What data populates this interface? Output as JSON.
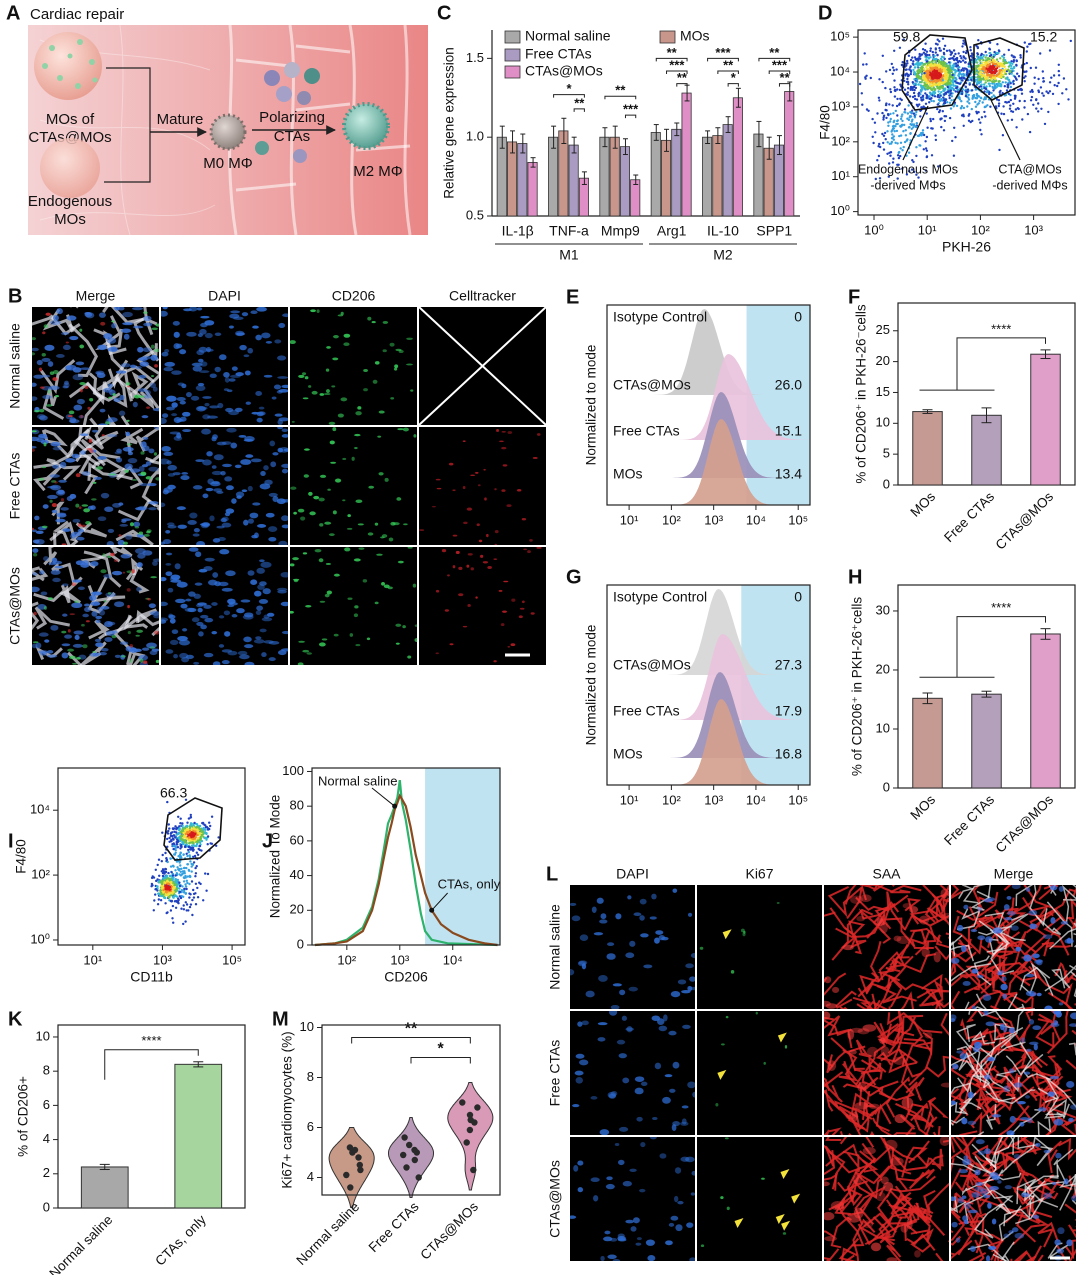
{
  "diagram": {
    "panel": "A",
    "title": "Cardiac repair",
    "mos_label": [
      "MOs of",
      "CTAs@MOs"
    ],
    "endo_label": [
      "Endogenous",
      "MOs"
    ],
    "mature": "Mature",
    "m0": "M0 MΦ",
    "polarizing": [
      "Polarizing",
      "CTAs"
    ],
    "m2": "M2 MΦ"
  },
  "micrographs_B": {
    "panel": "B",
    "columns": [
      "Merge",
      "DAPI",
      "CD206",
      "Celltracker"
    ],
    "column_colors": [
      "#111111",
      "#3a86d0",
      "#2fb36a",
      "#e0202a"
    ],
    "rows": [
      "Normal saline",
      "Free CTAs",
      "CTAs@MOs"
    ]
  },
  "micrographs_L": {
    "panel": "L",
    "columns": [
      "DAPI",
      "Ki67",
      "SAA",
      "Merge"
    ],
    "column_colors": [
      "#4aa9dc",
      "#3dbb6a",
      "#e0302a",
      "#111111"
    ],
    "rows": [
      "Normal saline",
      "Free CTAs",
      "CTAs@MOs"
    ]
  },
  "chart_data": [
    {
      "type": "bar",
      "panel": "C",
      "ylabel": "Relative gene expression",
      "categories": [
        "IL-1β",
        "TNF-a",
        "Mmp9",
        "Arg1",
        "IL-10",
        "SPP1"
      ],
      "groups": [
        {
          "label": "M1",
          "from": 0,
          "to": 2
        },
        {
          "label": "M2",
          "from": 3,
          "to": 5
        }
      ],
      "series": [
        {
          "name": "Normal saline",
          "color": "#a9a9a9",
          "values": [
            1.0,
            1.0,
            1.0,
            1.03,
            1.0,
            1.02
          ],
          "errors": [
            0.07,
            0.07,
            0.06,
            0.05,
            0.04,
            0.08
          ]
        },
        {
          "name": "MOs",
          "color": "#c9968c",
          "values": [
            0.97,
            1.04,
            1.0,
            0.98,
            1.01,
            0.93
          ],
          "errors": [
            0.07,
            0.08,
            0.07,
            0.07,
            0.05,
            0.07
          ]
        },
        {
          "name": "Free CTAs",
          "color": "#a99bc2",
          "values": [
            0.96,
            0.95,
            0.94,
            1.05,
            1.08,
            0.95
          ],
          "errors": [
            0.06,
            0.05,
            0.05,
            0.04,
            0.05,
            0.06
          ]
        },
        {
          "name": "CTAs@MOs",
          "color": "#df8fc6",
          "values": [
            0.84,
            0.74,
            0.73,
            1.28,
            1.25,
            1.29
          ],
          "errors": [
            0.03,
            0.04,
            0.03,
            0.05,
            0.06,
            0.06
          ]
        }
      ],
      "significance": [
        {
          "label": "*",
          "category": 1,
          "bars": [
            0,
            3
          ],
          "y": 1.27
        },
        {
          "label": "**",
          "category": 1,
          "bars": [
            2,
            3
          ],
          "y": 1.18
        },
        {
          "label": "**",
          "category": 2,
          "bars": [
            0,
            3
          ],
          "y": 1.26
        },
        {
          "label": "***",
          "category": 2,
          "bars": [
            2,
            3
          ],
          "y": 1.14
        },
        {
          "label": "**",
          "category": 3,
          "bars": [
            0,
            3
          ],
          "y": 1.5
        },
        {
          "label": "***",
          "category": 3,
          "bars": [
            1,
            3
          ],
          "y": 1.42
        },
        {
          "label": "**",
          "category": 3,
          "bars": [
            2,
            3
          ],
          "y": 1.34
        },
        {
          "label": "***",
          "category": 4,
          "bars": [
            0,
            3
          ],
          "y": 1.5
        },
        {
          "label": "**",
          "category": 4,
          "bars": [
            1,
            3
          ],
          "y": 1.42
        },
        {
          "label": "*",
          "category": 4,
          "bars": [
            2,
            3
          ],
          "y": 1.34
        },
        {
          "label": "**",
          "category": 5,
          "bars": [
            0,
            3
          ],
          "y": 1.5
        },
        {
          "label": "***",
          "category": 5,
          "bars": [
            1,
            3
          ],
          "y": 1.42
        },
        {
          "label": "**",
          "category": 5,
          "bars": [
            2,
            3
          ],
          "y": 1.34
        }
      ],
      "ylim": [
        0.5,
        1.68
      ],
      "yticks": [
        0.5,
        {
          "value": 1,
          "label": "1.0"
        },
        1.5
      ]
    },
    {
      "type": "flow-scatter",
      "panel": "D",
      "xlabel": "PKH-26",
      "ylabel": "F4/80",
      "xscale": "log",
      "yscale": "log",
      "xlim": [
        0.5,
        6000
      ],
      "ylim": [
        0.8,
        160000
      ],
      "xticks": [
        {
          "value": 1,
          "label": "10⁰"
        },
        {
          "value": 10,
          "label": "10¹"
        },
        {
          "value": 100,
          "label": "10²"
        },
        {
          "value": 1000,
          "label": "10³"
        }
      ],
      "yticks": [
        {
          "value": 1,
          "label": "10⁰"
        },
        {
          "value": 10,
          "label": "10¹"
        },
        {
          "value": 100,
          "label": "10²"
        },
        {
          "value": 1000,
          "label": "10³"
        },
        {
          "value": 10000,
          "label": "10⁴"
        },
        {
          "value": 100000,
          "label": "10⁵"
        }
      ],
      "gates": [
        59.8,
        15.2
      ],
      "annotations": [
        [
          "Endogenous MOs",
          "-derived MΦs"
        ],
        [
          "CTA@MOs",
          "-derived MΦs"
        ]
      ]
    },
    {
      "type": "flow-histogram",
      "panel": "E",
      "ylabel": "Normalized to mode",
      "xscale": "log",
      "xlim": [
        3,
        190000
      ],
      "xticks": [
        {
          "value": 10,
          "label": "10¹"
        },
        {
          "value": 100,
          "label": "10²"
        },
        {
          "value": 1000,
          "label": "10³"
        },
        {
          "value": 10000,
          "label": "10⁴"
        },
        {
          "value": 100000,
          "label": "10⁵"
        }
      ],
      "gate_start": 6000,
      "series": [
        {
          "name": "Isotype Control",
          "color": "#c9c9c9",
          "peak": 600
        },
        {
          "name": "CTAs@MOs",
          "color": "#e9c3dc",
          "peak": 2200
        },
        {
          "name": "Free CTAs",
          "color": "#9a8fb9",
          "peak": 1500
        },
        {
          "name": "MOs",
          "color": "#d4a08e",
          "peak": 1500
        }
      ],
      "values": [
        0,
        26,
        15.1,
        13.4
      ],
      "value_labels": [
        "0",
        "26.0",
        "15.1",
        "13.4"
      ]
    },
    {
      "type": "bar",
      "panel": "F",
      "ylabel": "% of CD206⁺ in PKH-26⁻cells",
      "categories": [
        "MOs",
        "Free CTAs",
        "CTAs@MOs"
      ],
      "values": [
        11.9,
        11.3,
        21.2
      ],
      "errors": [
        0.3,
        1.2,
        0.7
      ],
      "colors": [
        "#c49a93",
        "#b4a0bb",
        "#e09fc9"
      ],
      "significance": {
        "label": "****"
      },
      "ylim": [
        0,
        29.5
      ],
      "yticks": [
        0,
        5,
        10,
        15,
        20,
        25
      ]
    },
    {
      "type": "flow-histogram",
      "panel": "G",
      "ylabel": "Normalized to mode",
      "xscale": "log",
      "xlim": [
        3,
        190000
      ],
      "xticks": [
        {
          "value": 10,
          "label": "10¹"
        },
        {
          "value": 100,
          "label": "10²"
        },
        {
          "value": 1000,
          "label": "10³"
        },
        {
          "value": 10000,
          "label": "10⁴"
        },
        {
          "value": 100000,
          "label": "10⁵"
        }
      ],
      "gate_start": 4500,
      "series": [
        {
          "name": "Isotype Control",
          "color": "#d6d6d6",
          "peak": 1300
        },
        {
          "name": "CTAs@MOs",
          "color": "#e9c3dc",
          "peak": 1600
        },
        {
          "name": "Free CTAs",
          "color": "#9a8fb9",
          "peak": 1400
        },
        {
          "name": "MOs",
          "color": "#d4a08e",
          "peak": 1500
        }
      ],
      "values": [
        0,
        27.3,
        17.9,
        16.8
      ],
      "value_labels": [
        "0",
        "27.3",
        "17.9",
        "16.8"
      ]
    },
    {
      "type": "bar",
      "panel": "H",
      "ylabel": "% of CD206⁺ in PKH-26⁺cells",
      "categories": [
        "MOs",
        "Free CTAs",
        "CTAs@MOs"
      ],
      "values": [
        15.2,
        15.9,
        26.1
      ],
      "errors": [
        0.9,
        0.5,
        0.9
      ],
      "colors": [
        "#c49a93",
        "#b4a0bb",
        "#e09fc9"
      ],
      "significance": {
        "label": "****"
      },
      "ylim": [
        0,
        34.4
      ],
      "yticks": [
        0,
        10,
        20,
        30
      ]
    },
    {
      "type": "flow-scatter",
      "panel": "I",
      "xlabel": "CD11b",
      "ylabel": "F4/80",
      "xscale": "log",
      "yscale": "log",
      "xlim": [
        1,
        235000
      ],
      "ylim": [
        0.7,
        200000
      ],
      "xticks": [
        {
          "value": 10,
          "label": "10¹"
        },
        {
          "value": 1000,
          "label": "10³"
        },
        {
          "value": 100000,
          "label": "10⁵"
        }
      ],
      "yticks": [
        {
          "value": 1,
          "label": "10⁰"
        },
        {
          "value": 100,
          "label": "10²"
        },
        {
          "value": 10000,
          "label": "10⁴"
        }
      ],
      "gates": [
        66.3
      ]
    },
    {
      "type": "line",
      "panel": "J",
      "xlabel": "CD206",
      "ylabel": "Normalized To Mode",
      "xscale": "log",
      "xlim": [
        22,
        78000
      ],
      "ylim": [
        0,
        102
      ],
      "xticks": [
        {
          "value": 100,
          "label": "10²"
        },
        {
          "value": 1000,
          "label": "10³"
        },
        {
          "value": 10000,
          "label": "10⁴"
        }
      ],
      "yticks": [
        0,
        20,
        40,
        60,
        80,
        100
      ],
      "gate_start": 3000,
      "series": [
        {
          "name": "Normal saline",
          "color": "#2db36b",
          "x": [
            25,
            60,
            100,
            200,
            300,
            400,
            500,
            600,
            700,
            800,
            900,
            1000,
            1100,
            1300,
            1600,
            2000,
            2500,
            3000,
            4000,
            8000,
            70000
          ],
          "values": [
            0,
            1,
            3,
            10,
            22,
            38,
            55,
            70,
            75,
            80,
            85,
            95,
            82,
            72,
            55,
            35,
            18,
            8,
            3,
            1,
            0
          ]
        },
        {
          "name": "CTAs, only",
          "color": "#8a4a1e",
          "x": [
            25,
            60,
            100,
            200,
            300,
            400,
            500,
            600,
            700,
            800,
            900,
            1000,
            1100,
            1300,
            1600,
            2000,
            2500,
            3000,
            4000,
            6000,
            10000,
            20000,
            40000,
            70000
          ],
          "values": [
            0,
            1,
            2,
            8,
            20,
            35,
            50,
            62,
            70,
            78,
            82,
            86,
            84,
            80,
            68,
            52,
            40,
            30,
            20,
            12,
            7,
            3,
            1,
            0
          ]
        }
      ]
    },
    {
      "type": "bar",
      "panel": "K",
      "ylabel": "% of CD206+",
      "categories": [
        "Normal saline",
        "CTAs, only"
      ],
      "values": [
        2.4,
        8.4
      ],
      "errors": [
        0.15,
        0.15
      ],
      "colors": [
        "#a8a8a8",
        "#a6d59e"
      ],
      "significance": {
        "label": "****"
      },
      "ylim": [
        0,
        10.7
      ],
      "yticks": [
        0,
        2,
        4,
        6,
        8,
        10
      ]
    },
    {
      "type": "violin",
      "panel": "M",
      "ylabel": "Ki67+ cardiomyocytes (%)",
      "categories": [
        "Normal saline",
        "Free CTAs",
        "CTAs@MOs"
      ],
      "colors": [
        "#c69a86",
        "#b89ab8",
        "#d99ab8"
      ],
      "values": [
        [
          5.1,
          5.0,
          5.2,
          4.8,
          4.5,
          4.3,
          4.1,
          3.6
        ],
        [
          5.6,
          5.3,
          5.1,
          4.9,
          4.7,
          4.4,
          4.0,
          5.0
        ],
        [
          7.0,
          6.8,
          6.5,
          6.3,
          6.2,
          5.9,
          5.4,
          4.3
        ]
      ],
      "significance": [
        {
          "label": "**",
          "from": 0,
          "to": 2,
          "y": 9.6
        },
        {
          "label": "*",
          "from": 1,
          "to": 2,
          "y": 8.8
        }
      ],
      "ylim": [
        3.3,
        10.1
      ],
      "yticks": [
        4,
        6,
        8,
        10
      ]
    }
  ]
}
